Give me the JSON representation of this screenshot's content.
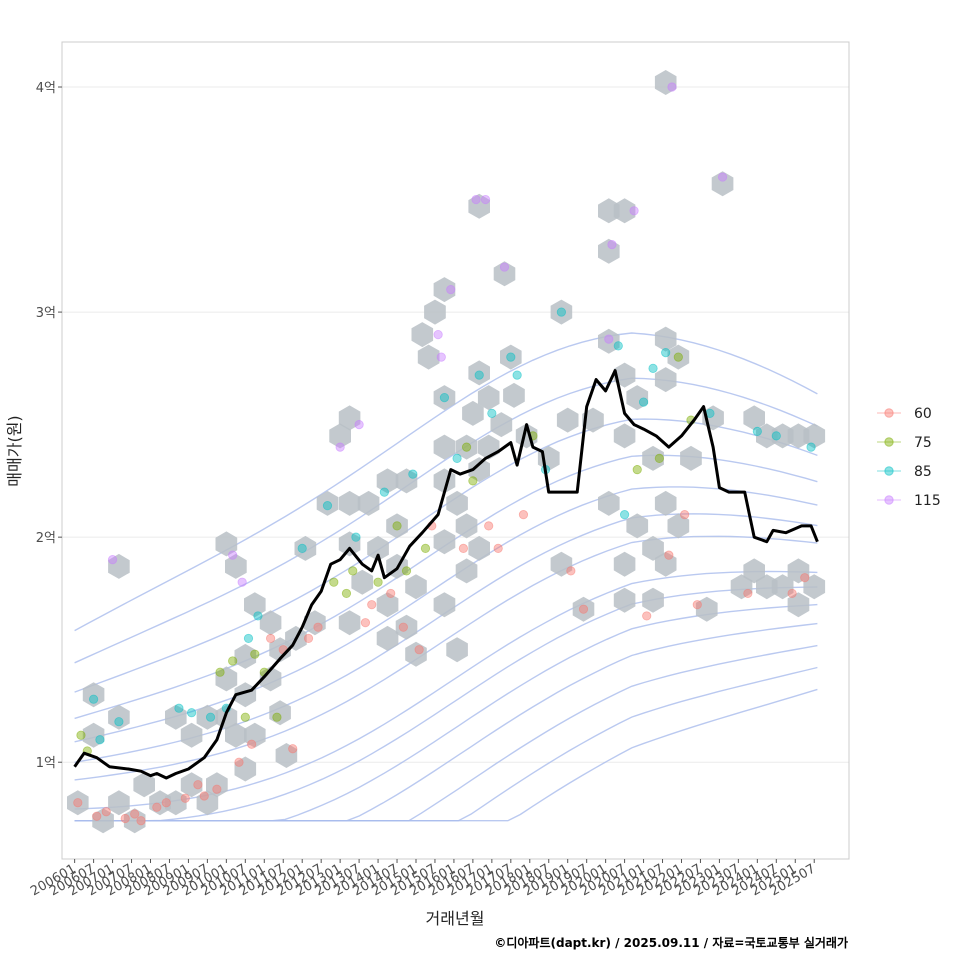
{
  "chart_data": {
    "type": "scatter",
    "xlabel": "거래년월",
    "ylabel": "매매가(원)",
    "caption": "©디아파트(dapt.kr) / 2025.09.11 / 자료=국토교통부 실거래가",
    "x_ticks": [
      "200601",
      "200607",
      "200701",
      "200707",
      "200801",
      "200807",
      "200901",
      "200907",
      "201001",
      "201007",
      "201101",
      "201107",
      "201201",
      "201207",
      "201301",
      "201307",
      "201401",
      "201407",
      "201501",
      "201507",
      "201601",
      "201607",
      "201701",
      "201707",
      "201801",
      "201807",
      "201901",
      "201907",
      "202001",
      "202007",
      "202101",
      "202107",
      "202201",
      "202207",
      "202301",
      "202307",
      "202401",
      "202407",
      "202501",
      "202507"
    ],
    "y_ticks": [
      {
        "value": 1.0,
        "label": "1억"
      },
      {
        "value": 2.0,
        "label": "2억"
      },
      {
        "value": 3.0,
        "label": "3억"
      },
      {
        "value": 4.0,
        "label": "4억"
      }
    ],
    "xlim": [
      "2005-09",
      "2026-06"
    ],
    "ylim": [
      0.57,
      4.2
    ],
    "y_unit": "억",
    "grid": true,
    "legend_position": "right",
    "legend": [
      {
        "name": "60",
        "color": "#F8766D"
      },
      {
        "name": "75",
        "color": "#7CAE00"
      },
      {
        "name": "85",
        "color": "#00BFC4"
      },
      {
        "name": "115",
        "color": "#C77CFF"
      }
    ],
    "median_line": [
      [
        "2006-01",
        0.98
      ],
      [
        "2006-04",
        1.04
      ],
      [
        "2006-08",
        1.02
      ],
      [
        "2006-12",
        0.98
      ],
      [
        "2007-06",
        0.97
      ],
      [
        "2007-10",
        0.96
      ],
      [
        "2008-01",
        0.94
      ],
      [
        "2008-03",
        0.95
      ],
      [
        "2008-06",
        0.93
      ],
      [
        "2008-09",
        0.95
      ],
      [
        "2009-01",
        0.97
      ],
      [
        "2009-06",
        1.02
      ],
      [
        "2009-10",
        1.1
      ],
      [
        "2010-01",
        1.22
      ],
      [
        "2010-04",
        1.3
      ],
      [
        "2010-09",
        1.32
      ],
      [
        "2011-01",
        1.38
      ],
      [
        "2011-06",
        1.46
      ],
      [
        "2011-10",
        1.52
      ],
      [
        "2012-01",
        1.6
      ],
      [
        "2012-04",
        1.7
      ],
      [
        "2012-07",
        1.76
      ],
      [
        "2012-10",
        1.88
      ],
      [
        "2013-01",
        1.9
      ],
      [
        "2013-04",
        1.95
      ],
      [
        "2013-08",
        1.88
      ],
      [
        "2013-11",
        1.85
      ],
      [
        "2014-01",
        1.92
      ],
      [
        "2014-03",
        1.82
      ],
      [
        "2014-07",
        1.86
      ],
      [
        "2014-11",
        1.96
      ],
      [
        "2015-03",
        2.02
      ],
      [
        "2015-08",
        2.1
      ],
      [
        "2015-12",
        2.3
      ],
      [
        "2016-03",
        2.28
      ],
      [
        "2016-07",
        2.3
      ],
      [
        "2016-11",
        2.35
      ],
      [
        "2017-03",
        2.38
      ],
      [
        "2017-07",
        2.42
      ],
      [
        "2017-09",
        2.32
      ],
      [
        "2017-12",
        2.5
      ],
      [
        "2018-02",
        2.4
      ],
      [
        "2018-05",
        2.38
      ],
      [
        "2018-07",
        2.2
      ],
      [
        "2018-12",
        2.2
      ],
      [
        "2019-04",
        2.2
      ],
      [
        "2019-07",
        2.58
      ],
      [
        "2019-10",
        2.7
      ],
      [
        "2020-01",
        2.65
      ],
      [
        "2020-04",
        2.74
      ],
      [
        "2020-07",
        2.55
      ],
      [
        "2020-10",
        2.5
      ],
      [
        "2021-01",
        2.48
      ],
      [
        "2021-05",
        2.45
      ],
      [
        "2021-09",
        2.4
      ],
      [
        "2022-01",
        2.45
      ],
      [
        "2022-05",
        2.52
      ],
      [
        "2022-08",
        2.58
      ],
      [
        "2022-11",
        2.4
      ],
      [
        "2023-01",
        2.22
      ],
      [
        "2023-04",
        2.2
      ],
      [
        "2023-09",
        2.2
      ],
      [
        "2023-12",
        2.0
      ],
      [
        "2024-04",
        1.98
      ],
      [
        "2024-06",
        2.03
      ],
      [
        "2024-10",
        2.02
      ],
      [
        "2025-03",
        2.05
      ],
      [
        "2025-06",
        2.05
      ],
      [
        "2025-08",
        1.98
      ]
    ],
    "points": [
      {
        "x": "2006-02",
        "y": 0.82,
        "area": "60"
      },
      {
        "x": "2006-03",
        "y": 1.12,
        "area": "75"
      },
      {
        "x": "2006-05",
        "y": 1.05,
        "area": "75"
      },
      {
        "x": "2006-07",
        "y": 1.28,
        "area": "85"
      },
      {
        "x": "2006-09",
        "y": 1.1,
        "area": "85"
      },
      {
        "x": "2006-08",
        "y": 0.76,
        "area": "60"
      },
      {
        "x": "2006-11",
        "y": 0.78,
        "area": "60"
      },
      {
        "x": "2007-03",
        "y": 1.18,
        "area": "85"
      },
      {
        "x": "2007-01",
        "y": 1.9,
        "area": "115"
      },
      {
        "x": "2007-05",
        "y": 0.75,
        "area": "60"
      },
      {
        "x": "2007-08",
        "y": 0.77,
        "area": "60"
      },
      {
        "x": "2007-10",
        "y": 0.74,
        "area": "60"
      },
      {
        "x": "2008-03",
        "y": 0.8,
        "area": "60"
      },
      {
        "x": "2008-06",
        "y": 0.82,
        "area": "60"
      },
      {
        "x": "2008-10",
        "y": 1.24,
        "area": "85"
      },
      {
        "x": "2008-12",
        "y": 0.84,
        "area": "60"
      },
      {
        "x": "2009-02",
        "y": 1.22,
        "area": "85"
      },
      {
        "x": "2009-04",
        "y": 0.9,
        "area": "60"
      },
      {
        "x": "2009-06",
        "y": 0.85,
        "area": "60"
      },
      {
        "x": "2009-08",
        "y": 1.2,
        "area": "85"
      },
      {
        "x": "2009-10",
        "y": 0.88,
        "area": "60"
      },
      {
        "x": "2009-11",
        "y": 1.4,
        "area": "75"
      },
      {
        "x": "2010-01",
        "y": 1.24,
        "area": "85"
      },
      {
        "x": "2010-03",
        "y": 1.45,
        "area": "75"
      },
      {
        "x": "2010-03",
        "y": 1.92,
        "area": "115"
      },
      {
        "x": "2010-05",
        "y": 1.0,
        "area": "60"
      },
      {
        "x": "2010-06",
        "y": 1.8,
        "area": "115"
      },
      {
        "x": "2010-07",
        "y": 1.2,
        "area": "75"
      },
      {
        "x": "2010-08",
        "y": 1.55,
        "area": "85"
      },
      {
        "x": "2010-09",
        "y": 1.08,
        "area": "60"
      },
      {
        "x": "2010-10",
        "y": 1.48,
        "area": "75"
      },
      {
        "x": "2010-11",
        "y": 1.65,
        "area": "85"
      },
      {
        "x": "2011-01",
        "y": 1.4,
        "area": "75"
      },
      {
        "x": "2011-03",
        "y": 1.55,
        "area": "60"
      },
      {
        "x": "2011-05",
        "y": 1.2,
        "area": "75"
      },
      {
        "x": "2011-07",
        "y": 1.5,
        "area": "60"
      },
      {
        "x": "2011-10",
        "y": 1.06,
        "area": "60"
      },
      {
        "x": "2012-01",
        "y": 1.95,
        "area": "85"
      },
      {
        "x": "2012-03",
        "y": 1.55,
        "area": "60"
      },
      {
        "x": "2012-06",
        "y": 1.6,
        "area": "60"
      },
      {
        "x": "2012-09",
        "y": 2.14,
        "area": "85"
      },
      {
        "x": "2012-11",
        "y": 1.8,
        "area": "75"
      },
      {
        "x": "2013-01",
        "y": 2.4,
        "area": "115"
      },
      {
        "x": "2013-03",
        "y": 1.75,
        "area": "75"
      },
      {
        "x": "2013-05",
        "y": 1.85,
        "area": "75"
      },
      {
        "x": "2013-06",
        "y": 2.0,
        "area": "85"
      },
      {
        "x": "2013-07",
        "y": 2.5,
        "area": "115"
      },
      {
        "x": "2013-09",
        "y": 1.62,
        "area": "60"
      },
      {
        "x": "2013-11",
        "y": 1.7,
        "area": "60"
      },
      {
        "x": "2014-01",
        "y": 1.8,
        "area": "75"
      },
      {
        "x": "2014-03",
        "y": 2.2,
        "area": "85"
      },
      {
        "x": "2014-05",
        "y": 1.75,
        "area": "60"
      },
      {
        "x": "2014-07",
        "y": 2.05,
        "area": "75"
      },
      {
        "x": "2014-09",
        "y": 1.6,
        "area": "60"
      },
      {
        "x": "2014-10",
        "y": 1.85,
        "area": "75"
      },
      {
        "x": "2014-12",
        "y": 2.28,
        "area": "85"
      },
      {
        "x": "2015-02",
        "y": 1.5,
        "area": "60"
      },
      {
        "x": "2015-04",
        "y": 1.95,
        "area": "75"
      },
      {
        "x": "2015-06",
        "y": 2.05,
        "area": "60"
      },
      {
        "x": "2015-08",
        "y": 2.9,
        "area": "115"
      },
      {
        "x": "2015-09",
        "y": 2.8,
        "area": "115"
      },
      {
        "x": "2015-10",
        "y": 2.62,
        "area": "85"
      },
      {
        "x": "2015-12",
        "y": 3.1,
        "area": "115"
      },
      {
        "x": "2016-02",
        "y": 2.35,
        "area": "85"
      },
      {
        "x": "2016-04",
        "y": 1.95,
        "area": "60"
      },
      {
        "x": "2016-05",
        "y": 2.4,
        "area": "75"
      },
      {
        "x": "2016-07",
        "y": 2.25,
        "area": "75"
      },
      {
        "x": "2016-08",
        "y": 3.5,
        "area": "115"
      },
      {
        "x": "2016-09",
        "y": 2.72,
        "area": "85"
      },
      {
        "x": "2016-11",
        "y": 3.5,
        "area": "115"
      },
      {
        "x": "2016-12",
        "y": 2.05,
        "area": "60"
      },
      {
        "x": "2017-01",
        "y": 2.55,
        "area": "85"
      },
      {
        "x": "2017-03",
        "y": 1.95,
        "area": "60"
      },
      {
        "x": "2017-05",
        "y": 3.2,
        "area": "115"
      },
      {
        "x": "2017-07",
        "y": 2.8,
        "area": "85"
      },
      {
        "x": "2017-09",
        "y": 2.72,
        "area": "85"
      },
      {
        "x": "2017-11",
        "y": 2.1,
        "area": "60"
      },
      {
        "x": "2018-02",
        "y": 2.45,
        "area": "75"
      },
      {
        "x": "2018-06",
        "y": 2.3,
        "area": "85"
      },
      {
        "x": "2018-11",
        "y": 3.0,
        "area": "85"
      },
      {
        "x": "2019-02",
        "y": 1.85,
        "area": "60"
      },
      {
        "x": "2019-06",
        "y": 1.68,
        "area": "60"
      },
      {
        "x": "2020-02",
        "y": 2.88,
        "area": "115"
      },
      {
        "x": "2020-03",
        "y": 3.3,
        "area": "115"
      },
      {
        "x": "2020-05",
        "y": 2.85,
        "area": "85"
      },
      {
        "x": "2020-07",
        "y": 2.1,
        "area": "85"
      },
      {
        "x": "2020-10",
        "y": 3.45,
        "area": "115"
      },
      {
        "x": "2020-11",
        "y": 2.3,
        "area": "75"
      },
      {
        "x": "2021-01",
        "y": 2.6,
        "area": "85"
      },
      {
        "x": "2021-02",
        "y": 1.65,
        "area": "60"
      },
      {
        "x": "2021-04",
        "y": 2.75,
        "area": "85"
      },
      {
        "x": "2021-06",
        "y": 2.35,
        "area": "75"
      },
      {
        "x": "2021-08",
        "y": 2.82,
        "area": "85"
      },
      {
        "x": "2021-09",
        "y": 1.92,
        "area": "60"
      },
      {
        "x": "2021-10",
        "y": 4.0,
        "area": "115"
      },
      {
        "x": "2021-12",
        "y": 2.8,
        "area": "75"
      },
      {
        "x": "2022-02",
        "y": 2.1,
        "area": "60"
      },
      {
        "x": "2022-04",
        "y": 2.52,
        "area": "75"
      },
      {
        "x": "2022-06",
        "y": 1.7,
        "area": "60"
      },
      {
        "x": "2022-10",
        "y": 2.55,
        "area": "85"
      },
      {
        "x": "2023-02",
        "y": 3.6,
        "area": "115"
      },
      {
        "x": "2023-10",
        "y": 1.75,
        "area": "60"
      },
      {
        "x": "2024-01",
        "y": 2.47,
        "area": "85"
      },
      {
        "x": "2024-07",
        "y": 2.45,
        "area": "85"
      },
      {
        "x": "2024-12",
        "y": 1.75,
        "area": "60"
      },
      {
        "x": "2025-04",
        "y": 1.82,
        "area": "60"
      },
      {
        "x": "2025-06",
        "y": 2.4,
        "area": "85"
      }
    ],
    "hexbins": [
      [
        "2006-02",
        0.82
      ],
      [
        "2006-07",
        1.3
      ],
      [
        "2006-07",
        1.12
      ],
      [
        "2006-10",
        0.74
      ],
      [
        "2007-03",
        1.2
      ],
      [
        "2007-03",
        0.82
      ],
      [
        "2007-03",
        1.87
      ],
      [
        "2007-08",
        0.74
      ],
      [
        "2007-11",
        0.9
      ],
      [
        "2008-04",
        0.82
      ],
      [
        "2008-09",
        1.2
      ],
      [
        "2008-09",
        0.82
      ],
      [
        "2009-02",
        1.12
      ],
      [
        "2009-02",
        0.9
      ],
      [
        "2009-07",
        1.2
      ],
      [
        "2009-07",
        0.82
      ],
      [
        "2009-10",
        0.9
      ],
      [
        "2010-01",
        1.97
      ],
      [
        "2010-01",
        1.37
      ],
      [
        "2010-01",
        1.2
      ],
      [
        "2010-04",
        1.87
      ],
      [
        "2010-04",
        1.12
      ],
      [
        "2010-07",
        1.47
      ],
      [
        "2010-07",
        1.3
      ],
      [
        "2010-07",
        0.97
      ],
      [
        "2010-10",
        1.7
      ],
      [
        "2010-10",
        1.12
      ],
      [
        "2011-03",
        1.62
      ],
      [
        "2011-03",
        1.37
      ],
      [
        "2011-06",
        1.22
      ],
      [
        "2011-06",
        1.5
      ],
      [
        "2011-08",
        1.03
      ],
      [
        "2011-11",
        1.55
      ],
      [
        "2012-02",
        1.95
      ],
      [
        "2012-05",
        1.62
      ],
      [
        "2012-09",
        2.15
      ],
      [
        "2013-01",
        2.45
      ],
      [
        "2013-04",
        2.53
      ],
      [
        "2013-04",
        2.15
      ],
      [
        "2013-04",
        1.97
      ],
      [
        "2013-04",
        1.62
      ],
      [
        "2013-08",
        1.8
      ],
      [
        "2013-10",
        2.15
      ],
      [
        "2014-01",
        1.95
      ],
      [
        "2014-04",
        2.25
      ],
      [
        "2014-04",
        1.55
      ],
      [
        "2014-04",
        1.7
      ],
      [
        "2014-07",
        1.87
      ],
      [
        "2014-07",
        2.05
      ],
      [
        "2014-10",
        1.6
      ],
      [
        "2014-10",
        2.25
      ],
      [
        "2015-01",
        1.48
      ],
      [
        "2015-01",
        1.78
      ],
      [
        "2015-03",
        2.9
      ],
      [
        "2015-05",
        2.8
      ],
      [
        "2015-07",
        3.0
      ],
      [
        "2015-10",
        3.1
      ],
      [
        "2015-10",
        2.62
      ],
      [
        "2015-10",
        2.4
      ],
      [
        "2015-10",
        2.25
      ],
      [
        "2015-10",
        1.98
      ],
      [
        "2015-10",
        1.7
      ],
      [
        "2016-02",
        2.15
      ],
      [
        "2016-02",
        1.5
      ],
      [
        "2016-05",
        2.4
      ],
      [
        "2016-05",
        2.05
      ],
      [
        "2016-05",
        1.85
      ],
      [
        "2016-07",
        2.55
      ],
      [
        "2016-09",
        3.47
      ],
      [
        "2016-09",
        2.73
      ],
      [
        "2016-09",
        2.3
      ],
      [
        "2016-09",
        1.95
      ],
      [
        "2016-12",
        2.62
      ],
      [
        "2016-12",
        2.4
      ],
      [
        "2017-04",
        2.5
      ],
      [
        "2017-05",
        3.17
      ],
      [
        "2017-07",
        2.8
      ],
      [
        "2017-08",
        2.63
      ],
      [
        "2017-12",
        2.45
      ],
      [
        "2018-07",
        2.35
      ],
      [
        "2018-11",
        3.0
      ],
      [
        "2018-11",
        1.88
      ],
      [
        "2019-01",
        2.52
      ],
      [
        "2019-06",
        1.68
      ],
      [
        "2019-09",
        2.52
      ],
      [
        "2020-02",
        3.45
      ],
      [
        "2020-02",
        3.27
      ],
      [
        "2020-02",
        2.87
      ],
      [
        "2020-02",
        2.15
      ],
      [
        "2020-07",
        3.45
      ],
      [
        "2020-07",
        2.72
      ],
      [
        "2020-07",
        2.45
      ],
      [
        "2020-07",
        1.88
      ],
      [
        "2020-07",
        1.72
      ],
      [
        "2020-11",
        2.62
      ],
      [
        "2020-11",
        2.05
      ],
      [
        "2021-04",
        2.35
      ],
      [
        "2021-04",
        1.95
      ],
      [
        "2021-04",
        1.72
      ],
      [
        "2021-08",
        4.02
      ],
      [
        "2021-08",
        2.88
      ],
      [
        "2021-08",
        2.7
      ],
      [
        "2021-08",
        2.15
      ],
      [
        "2021-08",
        1.88
      ],
      [
        "2021-12",
        2.8
      ],
      [
        "2021-12",
        2.05
      ],
      [
        "2022-04",
        2.35
      ],
      [
        "2022-09",
        1.68
      ],
      [
        "2022-11",
        2.53
      ],
      [
        "2023-02",
        3.57
      ],
      [
        "2023-08",
        1.78
      ],
      [
        "2023-12",
        2.53
      ],
      [
        "2023-12",
        1.85
      ],
      [
        "2024-04",
        2.45
      ],
      [
        "2024-04",
        1.78
      ],
      [
        "2024-09",
        2.45
      ],
      [
        "2024-09",
        1.78
      ],
      [
        "2025-02",
        2.45
      ],
      [
        "2025-02",
        1.7
      ],
      [
        "2025-02",
        1.85
      ],
      [
        "2025-07",
        2.45
      ],
      [
        "2025-07",
        1.78
      ]
    ]
  }
}
